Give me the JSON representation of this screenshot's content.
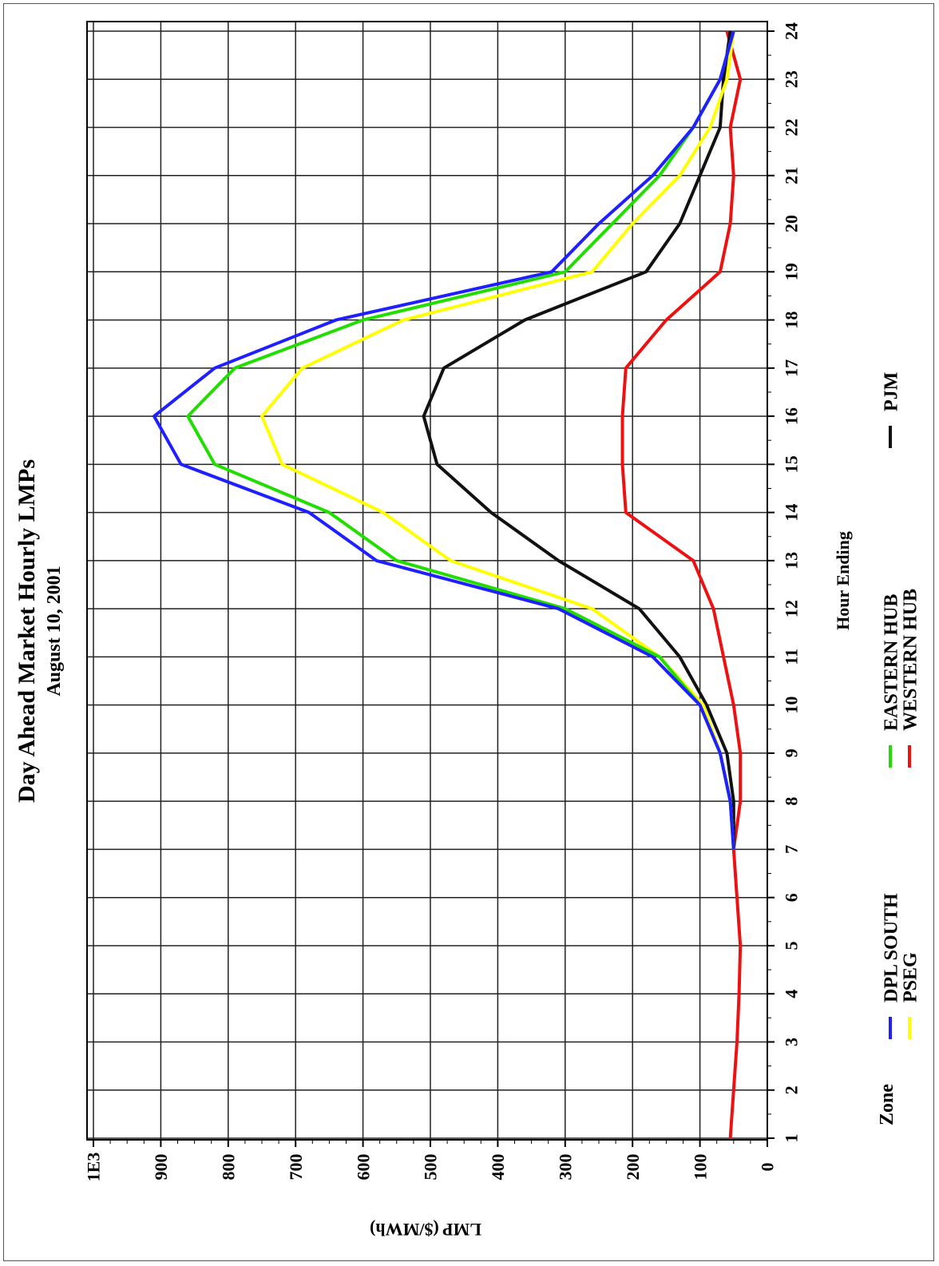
{
  "chart_data": {
    "type": "line",
    "title": "Day Ahead Market Hourly LMPs",
    "subtitle": "August 10, 2001",
    "xlabel": "Hour Ending",
    "ylabel": "LMP ($/MWh)",
    "x": [
      1,
      2,
      3,
      4,
      5,
      6,
      7,
      8,
      9,
      10,
      11,
      12,
      13,
      14,
      15,
      16,
      17,
      18,
      19,
      20,
      21,
      22,
      23,
      24
    ],
    "xlim": [
      1,
      24
    ],
    "ylim": [
      0,
      1000
    ],
    "y_ticks": [
      0,
      100,
      200,
      300,
      400,
      500,
      600,
      700,
      800,
      900,
      1000
    ],
    "y_tick_labels": [
      "0",
      "100",
      "200",
      "300",
      "400",
      "500",
      "600",
      "700",
      "800",
      "900",
      "1E3"
    ],
    "x_tick_labels": [
      "1",
      "2",
      "3",
      "4",
      "5",
      "6",
      "7",
      "8",
      "9",
      "10",
      "11",
      "12",
      "13",
      "14",
      "15",
      "16",
      "17",
      "18",
      "19",
      "20",
      "21",
      "22",
      "23",
      "24"
    ],
    "grid": true,
    "orientation": "rotated 90 degrees counter-clockwise",
    "legend": {
      "title": "Zone",
      "placement": "bottom"
    },
    "series": [
      {
        "name": "DPL SOUTH",
        "color": "#1f1fff",
        "values": [
          null,
          null,
          null,
          null,
          null,
          null,
          50,
          55,
          70,
          100,
          170,
          310,
          580,
          680,
          870,
          910,
          820,
          640,
          320,
          250,
          170,
          110,
          70,
          50
        ]
      },
      {
        "name": "PSEG",
        "color": "#ffff00",
        "values": [
          null,
          null,
          null,
          null,
          null,
          null,
          50,
          55,
          70,
          95,
          160,
          260,
          470,
          570,
          720,
          750,
          690,
          540,
          260,
          200,
          130,
          85,
          60,
          50
        ]
      },
      {
        "name": "EASTERN HUB",
        "color": "#22dd00",
        "values": [
          null,
          null,
          null,
          null,
          null,
          null,
          50,
          55,
          70,
          100,
          160,
          300,
          550,
          650,
          820,
          860,
          790,
          600,
          300,
          230,
          160,
          110,
          70,
          50
        ]
      },
      {
        "name": "WESTERN HUB",
        "color": "#ee1111",
        "values": [
          55,
          50,
          45,
          42,
          40,
          45,
          50,
          40,
          40,
          50,
          65,
          80,
          110,
          210,
          215,
          215,
          210,
          150,
          70,
          55,
          50,
          55,
          40,
          60
        ]
      },
      {
        "name": "PJM",
        "color": "#111111",
        "values": [
          null,
          null,
          null,
          null,
          null,
          null,
          50,
          50,
          60,
          90,
          130,
          190,
          310,
          410,
          490,
          510,
          480,
          360,
          180,
          130,
          100,
          70,
          65,
          55
        ]
      }
    ]
  }
}
